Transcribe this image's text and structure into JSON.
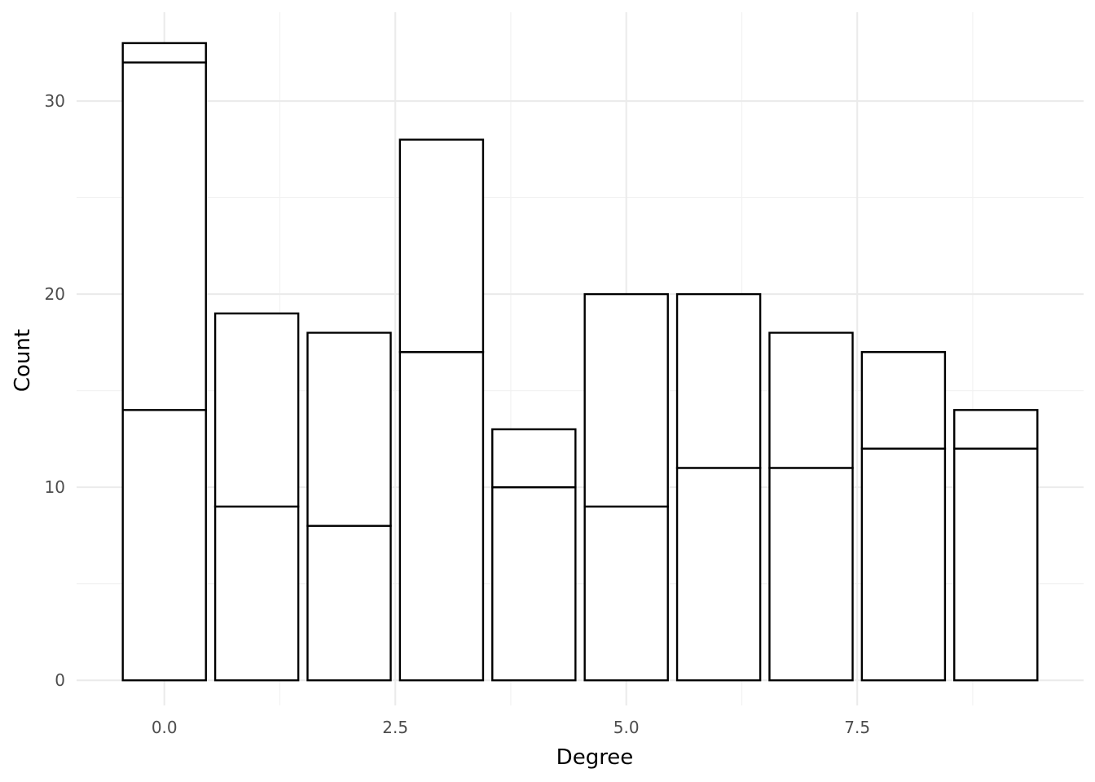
{
  "chart_data": {
    "type": "bar",
    "stacked": true,
    "xlabel": "Degree",
    "ylabel": "Count",
    "x": [
      0,
      1,
      2,
      3,
      4,
      5,
      6,
      7,
      8,
      9
    ],
    "stack_boundaries": [
      [
        14,
        32,
        33
      ],
      [
        9,
        19
      ],
      [
        8,
        18
      ],
      [
        17,
        28
      ],
      [
        10,
        13
      ],
      [
        9,
        20
      ],
      [
        11,
        20
      ],
      [
        11,
        18
      ],
      [
        12,
        17
      ],
      [
        12,
        14
      ]
    ],
    "totals": [
      33,
      19,
      18,
      28,
      13,
      20,
      20,
      18,
      17,
      14
    ],
    "xlim": [
      -0.95,
      9.95
    ],
    "ylim": [
      -1.3,
      34.6
    ],
    "x_ticks": [
      {
        "value": 0.0,
        "label": "0.0"
      },
      {
        "value": 2.5,
        "label": "2.5"
      },
      {
        "value": 5.0,
        "label": "5.0"
      },
      {
        "value": 7.5,
        "label": "7.5"
      }
    ],
    "x_minor_ticks": [
      1.25,
      3.75,
      6.25,
      8.75
    ],
    "y_ticks": [
      {
        "value": 0,
        "label": "0"
      },
      {
        "value": 10,
        "label": "10"
      },
      {
        "value": 20,
        "label": "20"
      },
      {
        "value": 30,
        "label": "30"
      }
    ],
    "y_minor_ticks": [
      5,
      15,
      25
    ],
    "bar_width": 0.9,
    "grid": true,
    "legend": "none",
    "colors": {
      "bar_fill": "#ffffff",
      "bar_outline": "#000000",
      "grid_major": "#ebebeb",
      "grid_minor": "#f2f2f2",
      "tick_text": "#4d4d4d"
    }
  }
}
